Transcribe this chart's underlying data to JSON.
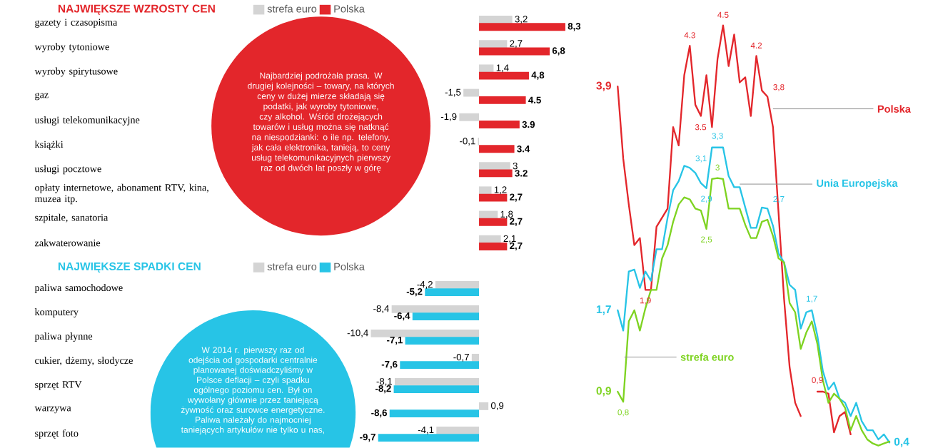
{
  "chart_data": [
    {
      "type": "bar",
      "orientation": "horizontal",
      "title": "NAJWIĘKSZE WZROSTY CEN",
      "legend": "top",
      "tick_labels": "y",
      "categories": [
        "gazety i czasopisma",
        "wyroby tytoniowe",
        "wyroby spirytusowe",
        "gaz",
        "usługi telekomunikacyjne",
        "książki",
        "usługi pocztowe",
        "opłaty internetowe, abonament RTV, kina, muzea itp.",
        "szpitale, sanatoria",
        "zakwaterowanie"
      ],
      "series": [
        {
          "name": "strefa euro",
          "color": "#d4d4d4",
          "values": [
            3.2,
            2.7,
            1.4,
            -1.5,
            -1.9,
            -0.1,
            3,
            1.2,
            1.8,
            2.1
          ],
          "value_labels": [
            "3,2",
            "2,7",
            "1,4",
            "-1,5",
            "-1,9",
            "-0,1",
            "3",
            "1,2",
            "1,8",
            "2,1"
          ]
        },
        {
          "name": "Polska",
          "color": "#e3262b",
          "values": [
            8.3,
            6.8,
            4.8,
            4.5,
            3.9,
            3.4,
            3.2,
            2.7,
            2.7,
            2.7
          ],
          "value_labels": [
            "8,3",
            "6,8",
            "4,8",
            "4.5",
            "3.9",
            "3.4",
            "3.2",
            "2,7",
            "2,7",
            "2,7"
          ]
        }
      ],
      "annotations": [
        "Najbardziej podrożała prasa. W drugiej kolejności – towary, na których ceny w dużej mierze składają się podatki, jak wyroby tytoniowe, czy alkohol. Wśród drożejących towarów i usług można się natknąć na niespodzianki: o ile np. telefony, jak cała elektronika, tanieją, to ceny usług telekomunikacyjnych pierwszy raz od dwóch lat poszły w górę"
      ]
    },
    {
      "type": "bar",
      "orientation": "horizontal",
      "title": "NAJWIĘKSZE SPADKI CEN",
      "legend": "top",
      "tick_labels": "y",
      "categories": [
        "paliwa samochodowe",
        "komputery",
        "paliwa płynne",
        "cukier, dżemy, słodycze",
        "sprzęt RTV",
        "warzywa",
        "sprzęt foto"
      ],
      "series": [
        {
          "name": "strefa euro",
          "color": "#d4d4d4",
          "values": [
            -4.2,
            -8.4,
            -10.4,
            -0.7,
            -8.1,
            0.9,
            -4.1
          ],
          "value_labels": [
            "-4,2",
            "-8,4",
            "-10,4",
            "-0,7",
            "-8,1",
            "0,9",
            "-4,1"
          ]
        },
        {
          "name": "Polska",
          "color": "#27c4e6",
          "values": [
            -5.2,
            -6.4,
            -7.1,
            -7.6,
            -8.2,
            -8.6,
            -9.7
          ],
          "value_labels": [
            "-5,2",
            "-6,4",
            "-7,1",
            "-7,6",
            "-8,2",
            "-8,6",
            "-9,7"
          ]
        }
      ],
      "annotations": [
        "W 2014 r. pierwszy raz od odejścia od gospodarki centralnie planowanej doświadczyliśmy w Polsce deflacji – czyli spadku ogólnego poziomu cen. Był on wywołany głównie przez taniejącą żywność oraz surowce energetyczne. Paliwa należały do najmocniej taniejących artykułów nie tylko u nas,"
      ]
    },
    {
      "type": "line",
      "tick_labels": false,
      "categories": [
        null,
        null,
        null,
        null,
        null,
        null,
        null,
        null,
        null,
        null,
        null,
        null,
        null,
        null,
        null,
        null,
        null,
        null,
        null,
        null,
        null,
        null,
        null,
        null,
        null,
        null,
        null,
        null,
        null,
        null,
        null,
        null,
        null,
        null,
        null,
        null,
        null,
        null,
        null,
        null,
        null,
        null,
        null,
        null,
        null,
        null,
        null,
        null,
        null,
        null
      ],
      "series": [
        {
          "name": "Polska",
          "color": "#e3262b",
          "values": [
            3.9,
            3.19,
            2.74,
            2.34,
            2.41,
            1.9,
            1.9,
            2.52,
            2.61,
            2.7,
            3.5,
            3.32,
            4.01,
            4.3,
            3.72,
            3.61,
            4.01,
            3.5,
            4.17,
            4.5,
            4.1,
            4.41,
            3.94,
            3.99,
            3.61,
            4.2,
            3.86,
            3.8,
            3.5,
            2.66,
            1.81,
            1.14,
            0.79,
            0.66,
            null,
            null,
            0.9,
            0.9,
            0.88,
            0.5,
            0.66,
            0.7,
            0.48,
            null,
            null,
            null,
            null,
            null,
            null,
            null
          ],
          "value_labels": [
            "3,9",
            null,
            null,
            null,
            null,
            "1,9",
            null,
            null,
            null,
            null,
            null,
            null,
            null,
            "4.3",
            null,
            null,
            null,
            "3.5",
            null,
            "4.5",
            null,
            null,
            null,
            null,
            null,
            "4.2",
            null,
            "3,8",
            null,
            null,
            null,
            null,
            null,
            null,
            null,
            null,
            "0,9",
            null,
            null,
            null,
            null,
            null,
            null,
            null,
            null,
            null,
            null,
            null,
            null,
            null
          ]
        },
        {
          "name": "Unia Europejska",
          "color": "#27c4e6",
          "values": [
            1.7,
            1.5,
            2.08,
            2.1,
            1.92,
            2.08,
            1.99,
            2.3,
            2.3,
            2.61,
            2.88,
            2.97,
            3.12,
            3.1,
            3.05,
            2.95,
            2.9,
            3.3,
            3.3,
            3.3,
            3.02,
            2.91,
            2.91,
            2.71,
            2.51,
            2.51,
            2.71,
            2.7,
            2.53,
            2.26,
            2.17,
            1.95,
            1.9,
            1.52,
            1.68,
            1.7,
            1.45,
            1.1,
            0.92,
            0.99,
            0.83,
            0.79,
            0.66,
            0.79,
            0.61,
            0.52,
            0.52,
            0.43,
            0.48,
            0.4
          ],
          "value_labels": [
            "1,7",
            null,
            null,
            null,
            null,
            null,
            null,
            null,
            null,
            null,
            null,
            null,
            null,
            "3,1",
            null,
            null,
            "2,9",
            null,
            "3,3",
            null,
            null,
            null,
            null,
            null,
            null,
            null,
            null,
            "2,7",
            null,
            null,
            null,
            null,
            null,
            null,
            null,
            "1,7",
            null,
            null,
            null,
            null,
            null,
            null,
            null,
            null,
            null,
            null,
            null,
            null,
            null,
            "0,4"
          ]
        },
        {
          "name": "strefa euro",
          "color": "#7ed321",
          "values": [
            0.9,
            0.8,
            1.59,
            1.7,
            1.5,
            1.72,
            1.9,
            1.9,
            2.21,
            2.34,
            2.57,
            2.74,
            2.81,
            2.79,
            2.7,
            2.68,
            2.5,
            2.99,
            3.0,
            2.99,
            2.7,
            2.7,
            2.7,
            2.54,
            2.41,
            2.41,
            2.57,
            2.59,
            2.43,
            2.21,
            2.17,
            1.77,
            1.68,
            1.32,
            1.48,
            1.59,
            1.37,
            1.01,
            0.79,
            0.88,
            0.83,
            0.74,
            0.52,
            0.66,
            0.52,
            0.43,
            0.39,
            0.37,
            0.39,
            0.41
          ],
          "value_labels": [
            "0,9",
            "0,8",
            null,
            null,
            null,
            null,
            null,
            null,
            null,
            null,
            null,
            null,
            null,
            null,
            null,
            null,
            "2,5",
            null,
            "3",
            null,
            null,
            null,
            null,
            null,
            null,
            null,
            null,
            null,
            null,
            null,
            null,
            null,
            null,
            null,
            null,
            null,
            null,
            null,
            null,
            null,
            null,
            null,
            null,
            null,
            null,
            null,
            null,
            null,
            null,
            null
          ]
        }
      ]
    }
  ]
}
